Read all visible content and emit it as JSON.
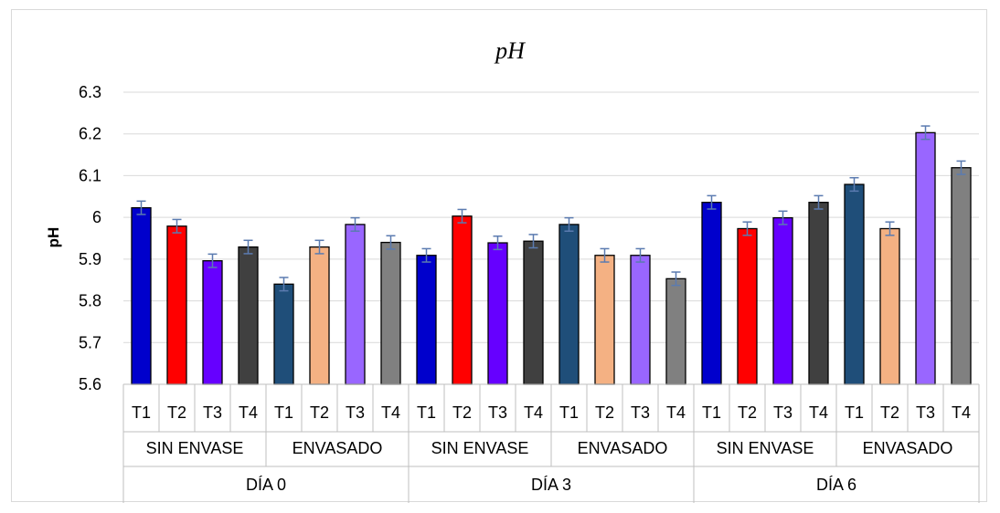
{
  "chart_data": {
    "type": "bar",
    "title": "pH",
    "xlabel": "",
    "ylabel": "pH",
    "ylim": [
      5.6,
      6.3
    ],
    "yticks": [
      "5.6",
      "5.7",
      "5.8",
      "5.9",
      "6",
      "6.1",
      "6.2",
      "6.3"
    ],
    "grid": true,
    "legend": "none",
    "groups": [
      {
        "day": "DÍA  0",
        "conditions": [
          {
            "name": "SIN ENVASE",
            "treatments": [
              "T1",
              "T2",
              "T3",
              "T4"
            ],
            "values": [
              6.023,
              5.979,
              5.896,
              5.929
            ],
            "errors": [
              0.016,
              0.016,
              0.016,
              0.016
            ]
          },
          {
            "name": "ENVASADO",
            "treatments": [
              "T1",
              "T2",
              "T3",
              "T4"
            ],
            "values": [
              5.84,
              5.929,
              5.983,
              5.94
            ],
            "errors": [
              0.016,
              0.016,
              0.016,
              0.016
            ]
          }
        ]
      },
      {
        "day": "DÍA  3",
        "conditions": [
          {
            "name": "SIN ENVASE",
            "treatments": [
              "T1",
              "T2",
              "T3",
              "T4"
            ],
            "values": [
              5.909,
              6.003,
              5.939,
              5.943
            ],
            "errors": [
              0.016,
              0.016,
              0.016,
              0.016
            ]
          },
          {
            "name": "ENVASADO",
            "treatments": [
              "T1",
              "T2",
              "T3",
              "T4"
            ],
            "values": [
              5.983,
              5.909,
              5.909,
              5.853
            ],
            "errors": [
              0.016,
              0.016,
              0.016,
              0.016
            ]
          }
        ]
      },
      {
        "day": "DÍA  6",
        "conditions": [
          {
            "name": "SIN ENVASE",
            "treatments": [
              "T1",
              "T2",
              "T3",
              "T4"
            ],
            "values": [
              6.036,
              5.973,
              5.999,
              6.036
            ],
            "errors": [
              0.016,
              0.016,
              0.016,
              0.016
            ]
          },
          {
            "name": "ENVASADO",
            "treatments": [
              "T1",
              "T2",
              "T3",
              "T4"
            ],
            "values": [
              6.079,
              5.973,
              6.203,
              6.119
            ],
            "errors": [
              0.016,
              0.016,
              0.016,
              0.016
            ]
          }
        ]
      }
    ],
    "colors": {
      "SIN ENVASE": [
        "#0000cc",
        "#ff0000",
        "#6600ff",
        "#404040"
      ],
      "ENVASADO": [
        "#1f4e79",
        "#f4b183",
        "#9966ff",
        "#808080"
      ],
      "error_bar": "#5b7bb0",
      "grid": "#d9d9d9",
      "axis": "#bfbfbf"
    }
  }
}
